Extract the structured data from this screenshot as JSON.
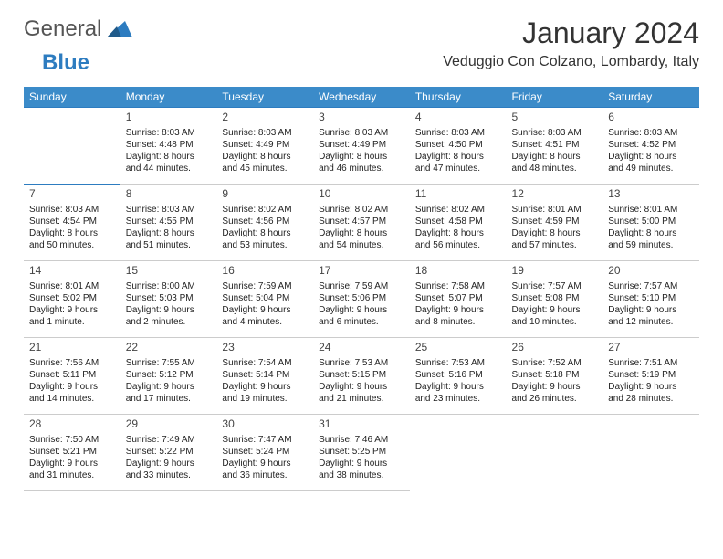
{
  "logo": {
    "general": "General",
    "blue": "Blue"
  },
  "header": {
    "month_title": "January 2024",
    "location": "Veduggio Con Colzano, Lombardy, Italy"
  },
  "colors": {
    "header_bg": "#3b8bc9",
    "header_text": "#ffffff",
    "row_top_border": "#2d7cc0",
    "row_bottom_border": "#cccccc",
    "logo_blue": "#2d7cc0",
    "logo_gray": "#555555"
  },
  "calendar": {
    "day_headers": [
      "Sunday",
      "Monday",
      "Tuesday",
      "Wednesday",
      "Thursday",
      "Friday",
      "Saturday"
    ],
    "weeks": [
      [
        null,
        {
          "n": "1",
          "sr": "Sunrise: 8:03 AM",
          "ss": "Sunset: 4:48 PM",
          "dl": "Daylight: 8 hours and 44 minutes."
        },
        {
          "n": "2",
          "sr": "Sunrise: 8:03 AM",
          "ss": "Sunset: 4:49 PM",
          "dl": "Daylight: 8 hours and 45 minutes."
        },
        {
          "n": "3",
          "sr": "Sunrise: 8:03 AM",
          "ss": "Sunset: 4:49 PM",
          "dl": "Daylight: 8 hours and 46 minutes."
        },
        {
          "n": "4",
          "sr": "Sunrise: 8:03 AM",
          "ss": "Sunset: 4:50 PM",
          "dl": "Daylight: 8 hours and 47 minutes."
        },
        {
          "n": "5",
          "sr": "Sunrise: 8:03 AM",
          "ss": "Sunset: 4:51 PM",
          "dl": "Daylight: 8 hours and 48 minutes."
        },
        {
          "n": "6",
          "sr": "Sunrise: 8:03 AM",
          "ss": "Sunset: 4:52 PM",
          "dl": "Daylight: 8 hours and 49 minutes."
        }
      ],
      [
        {
          "n": "7",
          "sr": "Sunrise: 8:03 AM",
          "ss": "Sunset: 4:54 PM",
          "dl": "Daylight: 8 hours and 50 minutes."
        },
        {
          "n": "8",
          "sr": "Sunrise: 8:03 AM",
          "ss": "Sunset: 4:55 PM",
          "dl": "Daylight: 8 hours and 51 minutes."
        },
        {
          "n": "9",
          "sr": "Sunrise: 8:02 AM",
          "ss": "Sunset: 4:56 PM",
          "dl": "Daylight: 8 hours and 53 minutes."
        },
        {
          "n": "10",
          "sr": "Sunrise: 8:02 AM",
          "ss": "Sunset: 4:57 PM",
          "dl": "Daylight: 8 hours and 54 minutes."
        },
        {
          "n": "11",
          "sr": "Sunrise: 8:02 AM",
          "ss": "Sunset: 4:58 PM",
          "dl": "Daylight: 8 hours and 56 minutes."
        },
        {
          "n": "12",
          "sr": "Sunrise: 8:01 AM",
          "ss": "Sunset: 4:59 PM",
          "dl": "Daylight: 8 hours and 57 minutes."
        },
        {
          "n": "13",
          "sr": "Sunrise: 8:01 AM",
          "ss": "Sunset: 5:00 PM",
          "dl": "Daylight: 8 hours and 59 minutes."
        }
      ],
      [
        {
          "n": "14",
          "sr": "Sunrise: 8:01 AM",
          "ss": "Sunset: 5:02 PM",
          "dl": "Daylight: 9 hours and 1 minute."
        },
        {
          "n": "15",
          "sr": "Sunrise: 8:00 AM",
          "ss": "Sunset: 5:03 PM",
          "dl": "Daylight: 9 hours and 2 minutes."
        },
        {
          "n": "16",
          "sr": "Sunrise: 7:59 AM",
          "ss": "Sunset: 5:04 PM",
          "dl": "Daylight: 9 hours and 4 minutes."
        },
        {
          "n": "17",
          "sr": "Sunrise: 7:59 AM",
          "ss": "Sunset: 5:06 PM",
          "dl": "Daylight: 9 hours and 6 minutes."
        },
        {
          "n": "18",
          "sr": "Sunrise: 7:58 AM",
          "ss": "Sunset: 5:07 PM",
          "dl": "Daylight: 9 hours and 8 minutes."
        },
        {
          "n": "19",
          "sr": "Sunrise: 7:57 AM",
          "ss": "Sunset: 5:08 PM",
          "dl": "Daylight: 9 hours and 10 minutes."
        },
        {
          "n": "20",
          "sr": "Sunrise: 7:57 AM",
          "ss": "Sunset: 5:10 PM",
          "dl": "Daylight: 9 hours and 12 minutes."
        }
      ],
      [
        {
          "n": "21",
          "sr": "Sunrise: 7:56 AM",
          "ss": "Sunset: 5:11 PM",
          "dl": "Daylight: 9 hours and 14 minutes."
        },
        {
          "n": "22",
          "sr": "Sunrise: 7:55 AM",
          "ss": "Sunset: 5:12 PM",
          "dl": "Daylight: 9 hours and 17 minutes."
        },
        {
          "n": "23",
          "sr": "Sunrise: 7:54 AM",
          "ss": "Sunset: 5:14 PM",
          "dl": "Daylight: 9 hours and 19 minutes."
        },
        {
          "n": "24",
          "sr": "Sunrise: 7:53 AM",
          "ss": "Sunset: 5:15 PM",
          "dl": "Daylight: 9 hours and 21 minutes."
        },
        {
          "n": "25",
          "sr": "Sunrise: 7:53 AM",
          "ss": "Sunset: 5:16 PM",
          "dl": "Daylight: 9 hours and 23 minutes."
        },
        {
          "n": "26",
          "sr": "Sunrise: 7:52 AM",
          "ss": "Sunset: 5:18 PM",
          "dl": "Daylight: 9 hours and 26 minutes."
        },
        {
          "n": "27",
          "sr": "Sunrise: 7:51 AM",
          "ss": "Sunset: 5:19 PM",
          "dl": "Daylight: 9 hours and 28 minutes."
        }
      ],
      [
        {
          "n": "28",
          "sr": "Sunrise: 7:50 AM",
          "ss": "Sunset: 5:21 PM",
          "dl": "Daylight: 9 hours and 31 minutes."
        },
        {
          "n": "29",
          "sr": "Sunrise: 7:49 AM",
          "ss": "Sunset: 5:22 PM",
          "dl": "Daylight: 9 hours and 33 minutes."
        },
        {
          "n": "30",
          "sr": "Sunrise: 7:47 AM",
          "ss": "Sunset: 5:24 PM",
          "dl": "Daylight: 9 hours and 36 minutes."
        },
        {
          "n": "31",
          "sr": "Sunrise: 7:46 AM",
          "ss": "Sunset: 5:25 PM",
          "dl": "Daylight: 9 hours and 38 minutes."
        },
        null,
        null,
        null
      ]
    ]
  }
}
